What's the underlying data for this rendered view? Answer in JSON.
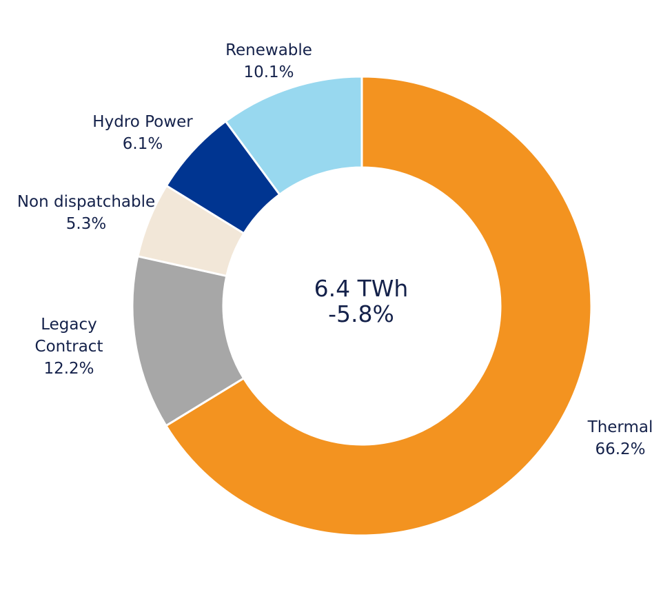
{
  "chart_data": {
    "type": "pie",
    "style": "donut",
    "title": "",
    "center_label": {
      "value": "6.4 TWh",
      "change": "-5.8%"
    },
    "slices": [
      {
        "name": "Thermal",
        "value": 66.2,
        "value_label": "66.2%",
        "color": "#f39320"
      },
      {
        "name": "Legacy Contract",
        "name_lines": [
          "Legacy",
          "Contract"
        ],
        "value": 12.2,
        "value_label": "12.2%",
        "color": "#a7a7a7"
      },
      {
        "name": "Non dispatchable",
        "value": 5.3,
        "value_label": "5.3%",
        "color": "#f2e7d8"
      },
      {
        "name": "Hydro Power",
        "value": 6.1,
        "value_label": "6.1%",
        "color": "#003591"
      },
      {
        "name": "Renewable",
        "value": 10.1,
        "value_label": "10.1%",
        "color": "#98d8ef"
      }
    ],
    "direction": "clockwise from top",
    "legend": "none (direct labels)"
  }
}
